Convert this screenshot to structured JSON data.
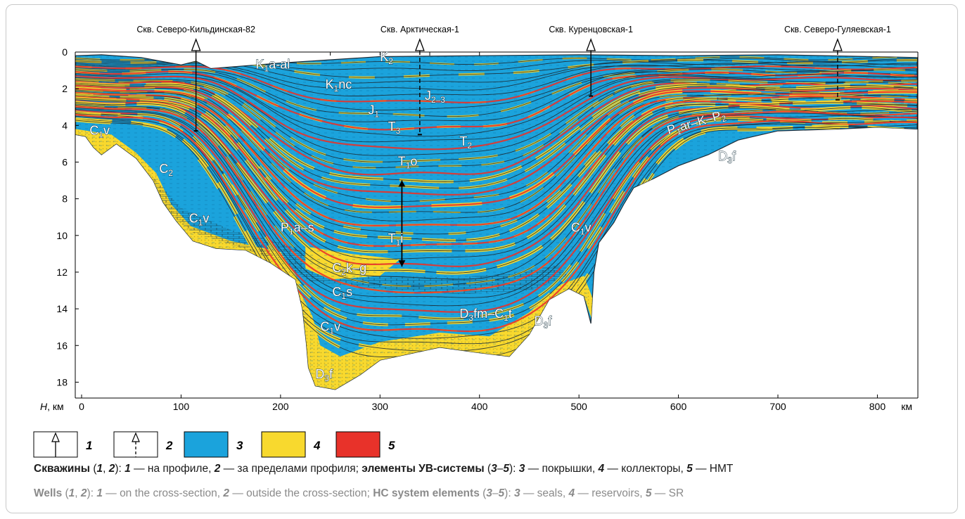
{
  "wells": [
    {
      "name": "Скв. Северо-Кильдинская-82",
      "km": 115,
      "depth_km": 4.3,
      "type": "on-profile"
    },
    {
      "name": "Скв. Арктическая-1",
      "km": 340,
      "depth_km": 4.5,
      "type": "outside-profile"
    },
    {
      "name": "Скв. Куренцовская-1",
      "km": 512,
      "depth_km": 2.4,
      "type": "on-profile"
    },
    {
      "name": "Скв. Северо-Гуляевская-1",
      "km": 760,
      "depth_km": 2.6,
      "type": "outside-profile"
    }
  ],
  "axes": {
    "y_label_main": "H",
    "y_label_unit": ", км",
    "y_ticks": [
      "0",
      "2",
      "4",
      "6",
      "8",
      "10",
      "12",
      "14",
      "16",
      "18"
    ],
    "x_ticks": [
      "0",
      "100",
      "200",
      "300",
      "400",
      "500",
      "600",
      "700",
      "800"
    ],
    "x_unit": "км",
    "x_range_km": [
      0,
      840
    ],
    "y_range_km": [
      0,
      18.5
    ]
  },
  "unit_labels": [
    {
      "main": "K",
      "sub": "1",
      "rest": "a-al",
      "km": 175,
      "depth": 0.9
    },
    {
      "main": "K",
      "sub": "2",
      "rest": "",
      "km": 300,
      "depth": 0.5
    },
    {
      "main": "K",
      "sub": "1",
      "rest": "nc",
      "km": 245,
      "depth": 2.0
    },
    {
      "main": "J",
      "sub": "2–3",
      "rest": "",
      "km": 345,
      "depth": 2.6
    },
    {
      "main": "J",
      "sub": "1",
      "rest": "",
      "km": 288,
      "depth": 3.4
    },
    {
      "main": "T",
      "sub": "3",
      "rest": "",
      "km": 308,
      "depth": 4.3
    },
    {
      "main": "T",
      "sub": "2",
      "rest": "",
      "km": 380,
      "depth": 5.1
    },
    {
      "main": "T",
      "sub": "1",
      "rest": "o",
      "km": 318,
      "depth": 6.2
    },
    {
      "main": "T",
      "sub": "1",
      "rest": "i",
      "km": 308,
      "depth": 10.4
    },
    {
      "main": "P",
      "sub": "1",
      "rest": "a–s",
      "km": 200,
      "depth": 9.8
    },
    {
      "main": "C",
      "sub": "2",
      "rest": "k–g",
      "km": 252,
      "depth": 12.0
    },
    {
      "main": "C",
      "sub": "1",
      "rest": "s",
      "km": 252,
      "depth": 13.3
    },
    {
      "main": "C",
      "sub": "1",
      "rest": "v",
      "km": 240,
      "depth": 15.2
    },
    {
      "main": "D",
      "sub": "3",
      "rest": "f",
      "km": 235,
      "depth": 17.8
    },
    {
      "main": "C",
      "sub": "1",
      "rest": "v",
      "km": 108,
      "depth": 9.3
    },
    {
      "main": "C",
      "sub": "2",
      "rest": "",
      "km": 78,
      "depth": 6.6
    },
    {
      "main": "C",
      "sub": "1",
      "rest": "v",
      "km": 8,
      "depth": 4.5
    },
    {
      "main": "C",
      "sub": "1",
      "rest": "v",
      "km": 492,
      "depth": 9.8
    },
    {
      "main": "D",
      "sub": "3",
      "rest": "fm–C",
      "sub2": "1",
      "rest2": "t",
      "km": 380,
      "depth": 14.5
    },
    {
      "main": "D",
      "sub": "3",
      "rest": "f",
      "km": 455,
      "depth": 14.9
    },
    {
      "main": "P",
      "sub": "1",
      "rest": "ar–K–P",
      "sub2": "2",
      "rest2": "",
      "km": 590,
      "depth": 4.5,
      "rotate": -16
    },
    {
      "main": "D",
      "sub": "3",
      "rest": "f",
      "km": 640,
      "depth": 5.9
    }
  ],
  "legend": [
    {
      "num": "1",
      "kind": "well-on",
      "color": "#ffffff"
    },
    {
      "num": "2",
      "kind": "well-off",
      "color": "#ffffff"
    },
    {
      "num": "3",
      "kind": "swatch",
      "color": "#1ba3dc"
    },
    {
      "num": "4",
      "kind": "swatch",
      "color": "#f8d92e"
    },
    {
      "num": "5",
      "kind": "swatch",
      "color": "#e8322a"
    }
  ],
  "colors": {
    "seal": "#1ba3dc",
    "reservoir": "#f8d92e",
    "source_rock": "#e8322a",
    "horizon": "#1c2a35"
  },
  "caption_ru": {
    "t1": "Скважины",
    "t2": " (",
    "t3": "1",
    "t4": ", ",
    "t5": "2",
    "t6": "): ",
    "t7": "1",
    "t8": " — на профиле, ",
    "t9": "2",
    "t10": " — за пределами профиля; ",
    "t11": "элементы УВ-системы",
    "t12": " (",
    "t13": "3",
    "t14": "–",
    "t15": "5",
    "t16": "): ",
    "t17": "3",
    "t18": " — покрышки, ",
    "t19": "4",
    "t20": " — коллекторы, ",
    "t21": "5",
    "t22": " — НМТ"
  },
  "caption_en": {
    "t1": "Wells",
    "t2": " (",
    "t3": "1",
    "t4": ", ",
    "t5": "2",
    "t6": "): ",
    "t7": "1",
    "t8": " — on the cross-section, ",
    "t9": "2",
    "t10": " — outside the cross-section; ",
    "t11": "HC system elements",
    "t12": " (",
    "t13": "3",
    "t14": "–",
    "t15": "5",
    "t16": "): ",
    "t17": "3",
    "t18": " — seals, ",
    "t19": "4",
    "t20": " — reservoirs, ",
    "t21": "5",
    "t22": " — SR"
  }
}
